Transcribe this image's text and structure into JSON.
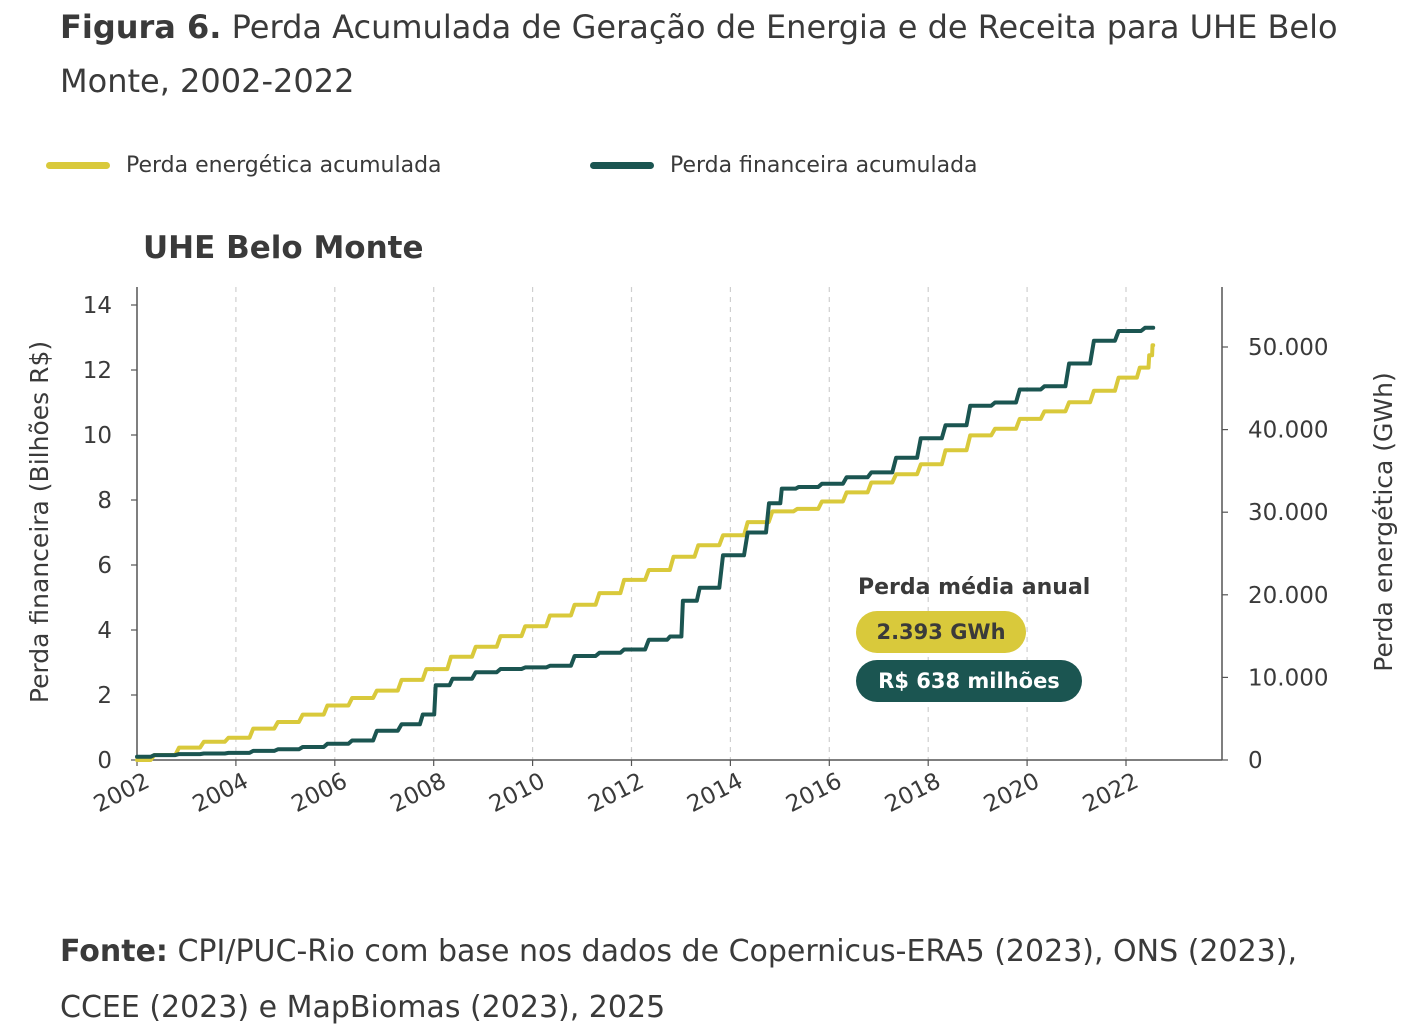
{
  "figure": {
    "title_lead": "Figura 6.",
    "title_rest": " Perda Acumulada de Geração de Energia e de Receita para UHE Belo Monte, 2002-2022"
  },
  "legend": [
    {
      "label": "Perda energética acumulada",
      "color": "#d9c93b"
    },
    {
      "label": "Perda financeira acumulada",
      "color": "#1b5551"
    }
  ],
  "annotation": {
    "label": "Perda média anual",
    "energy_value": "2.393 GWh",
    "money_value": "R$ 638 milhões"
  },
  "source": {
    "lead": "Fonte:",
    "text": " CPI/PUC-Rio com base nos dados de Copernicus-ERA5 (2023), ONS (2023), CCEE (2023) e MapBiomas (2023), 2025"
  },
  "chart_data": {
    "type": "line",
    "title": "UHE Belo Monte",
    "ylabel": "Perda financeira (Bilhões R$)",
    "y2label": "Perda energética (GWh)",
    "xlim": [
      2002,
      2023
    ],
    "ylim": [
      0,
      14
    ],
    "y2lim": [
      0,
      55000
    ],
    "x_ticks": [
      "2002",
      "2004",
      "2006",
      "2008",
      "2010",
      "2012",
      "2014",
      "2016",
      "2018",
      "2020",
      "2022"
    ],
    "y_ticks": [
      "0",
      "2",
      "4",
      "6",
      "8",
      "10",
      "12",
      "14"
    ],
    "y2_ticks": [
      "0",
      "10.000",
      "20.000",
      "30.000",
      "40.000",
      "50.000"
    ],
    "grid": "vertical dashed",
    "series": [
      {
        "name": "Perda energética acumulada",
        "axis": "right",
        "color": "#d9c93b",
        "x": [
          2002.0,
          2002.5,
          2003.0,
          2003.5,
          2004.0,
          2004.5,
          2005.0,
          2005.5,
          2006.0,
          2006.5,
          2007.0,
          2007.5,
          2008.0,
          2008.5,
          2009.0,
          2009.5,
          2010.0,
          2010.5,
          2011.0,
          2011.5,
          2012.0,
          2012.5,
          2013.0,
          2013.5,
          2014.0,
          2014.5,
          2015.0,
          2015.5,
          2016.0,
          2016.5,
          2017.0,
          2017.5,
          2018.0,
          2018.5,
          2019.0,
          2019.5,
          2020.0,
          2020.5,
          2021.0,
          2021.5,
          2022.0,
          2022.4,
          2022.5,
          2022.55
        ],
        "y": [
          0,
          600,
          1500,
          2200,
          2700,
          3800,
          4600,
          5500,
          6600,
          7500,
          8400,
          9700,
          11000,
          12500,
          13700,
          15000,
          16200,
          17500,
          18800,
          20200,
          21800,
          23000,
          24600,
          26000,
          27200,
          28800,
          30100,
          30400,
          31300,
          32400,
          33600,
          34600,
          35800,
          37500,
          39300,
          40100,
          41300,
          42200,
          43300,
          44700,
          46300,
          47500,
          49000,
          50200
        ]
      },
      {
        "name": "Perda financeira acumulada",
        "axis": "left",
        "color": "#1b5551",
        "x": [
          2002.0,
          2002.5,
          2003.0,
          2003.5,
          2004.0,
          2004.5,
          2005.0,
          2005.5,
          2006.0,
          2006.5,
          2007.0,
          2007.5,
          2007.9,
          2008.1,
          2008.5,
          2009.0,
          2009.5,
          2010.0,
          2010.5,
          2011.0,
          2011.5,
          2012.0,
          2012.5,
          2012.9,
          2013.1,
          2013.5,
          2014.0,
          2014.5,
          2014.9,
          2015.1,
          2015.5,
          2016.0,
          2016.5,
          2017.0,
          2017.5,
          2018.0,
          2018.5,
          2019.0,
          2019.5,
          2020.0,
          2020.5,
          2021.0,
          2021.5,
          2022.0,
          2022.55
        ],
        "y": [
          0.1,
          0.15,
          0.18,
          0.2,
          0.22,
          0.28,
          0.33,
          0.4,
          0.5,
          0.6,
          0.9,
          1.1,
          1.4,
          2.3,
          2.5,
          2.7,
          2.8,
          2.85,
          2.9,
          3.2,
          3.3,
          3.4,
          3.7,
          3.8,
          4.9,
          5.3,
          6.3,
          7.0,
          7.9,
          8.35,
          8.4,
          8.5,
          8.7,
          8.85,
          9.3,
          9.9,
          10.3,
          10.9,
          11.0,
          11.4,
          11.5,
          12.2,
          12.9,
          13.2,
          13.3
        ]
      }
    ]
  }
}
